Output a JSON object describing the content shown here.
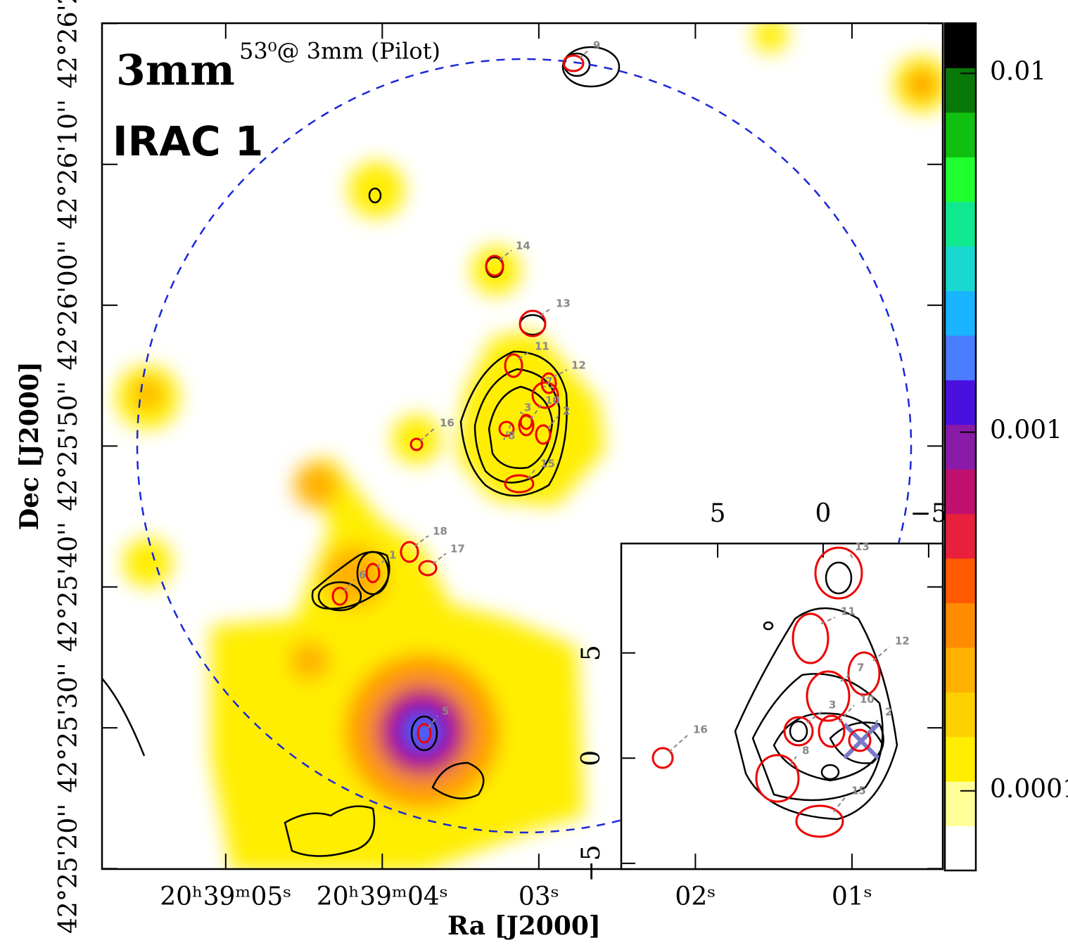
{
  "chart_data": {
    "type": "map",
    "annotations": {
      "band": "3mm",
      "image": "IRAC 1",
      "beam": "53⁰@ 3mm (Pilot)"
    },
    "xlabel": "Ra [J2000]",
    "ylabel": "Dec [J2000]",
    "xlim": [
      5.79,
      0.42
    ],
    "xticks": [
      {
        "value": 5,
        "label": "20ʰ39ᵐ05ˢ"
      },
      {
        "value": 4,
        "label": "20ʰ39ᵐ04ˢ"
      },
      {
        "value": 3,
        "label": "03ˢ"
      },
      {
        "value": 2,
        "label": "02ˢ"
      },
      {
        "value": 1,
        "label": "01ˢ"
      }
    ],
    "ylim": [
      42.422214,
      42.438894
    ],
    "yticks": [
      {
        "value": 42.422222,
        "label": "42°25'20''"
      },
      {
        "value": 42.425,
        "label": "42°25'30''"
      },
      {
        "value": 42.427778,
        "label": "42°25'40''"
      },
      {
        "value": 42.430556,
        "label": "42°25'50''"
      },
      {
        "value": 42.433333,
        "label": "42°26'00''"
      },
      {
        "value": 42.436111,
        "label": "42°26'10''"
      },
      {
        "value": 42.438889,
        "label": "42°26'20''"
      }
    ],
    "colorbar": {
      "log_scale": true,
      "clim": [
        6e-05,
        0.0138
      ],
      "ticks": [
        0.01,
        0.001,
        0.0001
      ],
      "colormap": [
        "#ffffff",
        "#ffff99",
        "#ffee00",
        "#ffd000",
        "#ffb000",
        "#ff8c00",
        "#ff5a00",
        "#e8203c",
        "#c0106e",
        "#8a1aa8",
        "#4a10e0",
        "#4a7cff",
        "#18b4ff",
        "#18d8d0",
        "#10e890",
        "#20ff30",
        "#10c010",
        "#087808",
        "#000000"
      ]
    },
    "sources": [
      "1",
      "2",
      "3",
      "5",
      "6",
      "7",
      "8",
      "9",
      "10",
      "11",
      "12",
      "13",
      "14",
      "15",
      "16",
      "17",
      "18"
    ],
    "inset": {
      "xlim": [
        9.57,
        -5.67
      ],
      "xticks": [
        5,
        0,
        {
          "value": -5,
          "label": "−5"
        }
      ],
      "ylim": [
        -5.27,
        10.2
      ],
      "yticks": [
        5,
        0,
        {
          "value": -5,
          "label": "−5"
        }
      ],
      "sources": [
        "13",
        "11",
        "12",
        "7",
        "3",
        "10",
        "2",
        "8",
        "15",
        "16"
      ]
    }
  }
}
